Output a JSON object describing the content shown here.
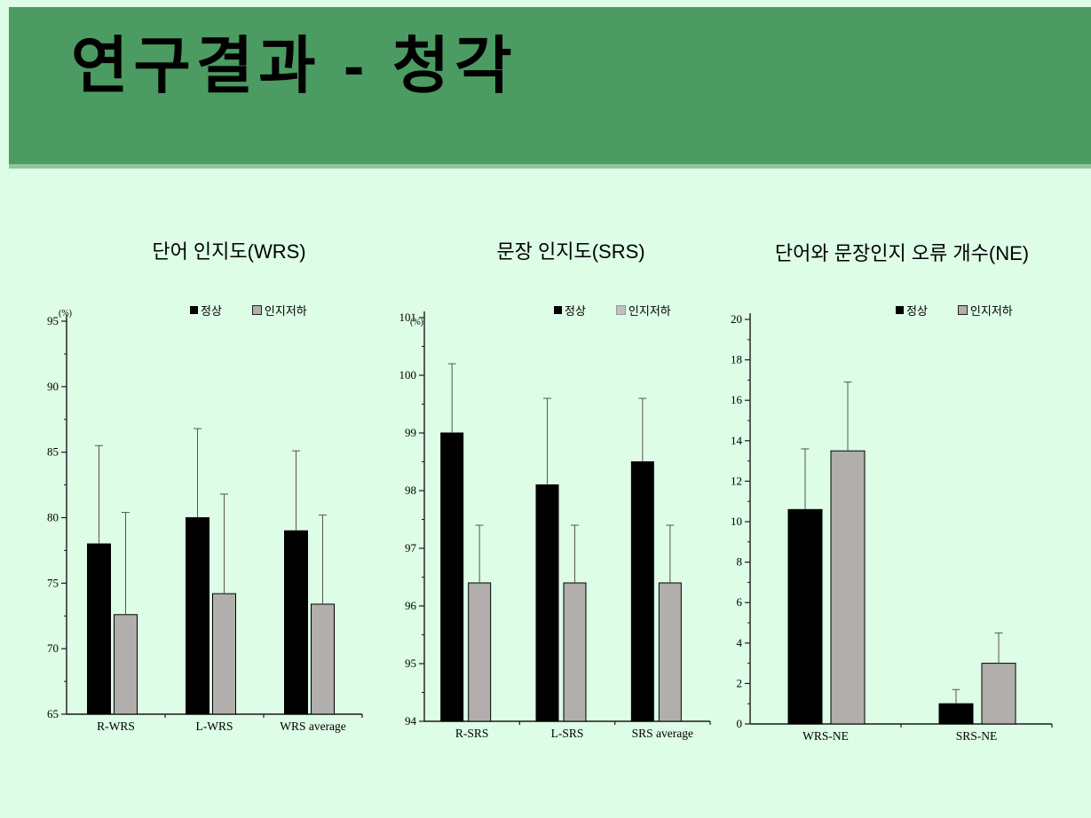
{
  "slide": {
    "title": "연구결과 - 청각"
  },
  "colors": {
    "header_green": "#4c9b62",
    "header_edge": "#8fc69c",
    "background": "#ddfde6",
    "bar_black": "#000000",
    "bar_gray": "#b1aeac",
    "error_bar": "#555555"
  },
  "chart_data": [
    {
      "type": "bar",
      "title": "단어 인지도(WRS)",
      "ylabel": "(%)",
      "categories": [
        "R-WRS",
        "L-WRS",
        "WRS average"
      ],
      "series": [
        {
          "name": "정상",
          "color": "#000000",
          "values": [
            78.0,
            80.0,
            79.0
          ],
          "error_top": [
            85.5,
            86.8,
            85.1
          ]
        },
        {
          "name": "인지저하",
          "color": "#b1aeac",
          "values": [
            72.6,
            74.2,
            73.4
          ],
          "error_top": [
            80.4,
            81.8,
            80.2
          ]
        }
      ],
      "ylim": [
        65,
        95
      ],
      "ytick_major": 5,
      "ytick_minor": 2.5,
      "legend_position": "top",
      "grid": false
    },
    {
      "type": "bar",
      "title": "문장 인지도(SRS)",
      "ylabel": "(%)",
      "categories": [
        "R-SRS",
        "L-SRS",
        "SRS average"
      ],
      "series": [
        {
          "name": "정상",
          "color": "#000000",
          "values": [
            99.0,
            98.1,
            98.5
          ],
          "error_top": [
            100.2,
            99.6,
            99.6
          ]
        },
        {
          "name": "인지저하",
          "color": "#b1aeac",
          "values": [
            96.4,
            96.4,
            96.4
          ],
          "error_top": [
            97.4,
            97.4,
            97.4
          ]
        }
      ],
      "ylim": [
        94,
        101
      ],
      "ytick_major": 1,
      "ytick_minor": 0.5,
      "legend_position": "top",
      "grid": false
    },
    {
      "type": "bar",
      "title": "단어와 문장인지 오류 개수(NE)",
      "ylabel": "",
      "categories": [
        "WRS-NE",
        "SRS-NE"
      ],
      "series": [
        {
          "name": "정상",
          "color": "#000000",
          "values": [
            10.6,
            1.0
          ],
          "error_top": [
            13.6,
            1.7
          ]
        },
        {
          "name": "인지저하",
          "color": "#b1aeac",
          "values": [
            13.5,
            3.0
          ],
          "error_top": [
            16.9,
            4.5
          ]
        }
      ],
      "ylim": [
        0,
        20
      ],
      "ytick_major": 2,
      "ytick_minor": 1,
      "legend_position": "top",
      "grid": false
    }
  ]
}
